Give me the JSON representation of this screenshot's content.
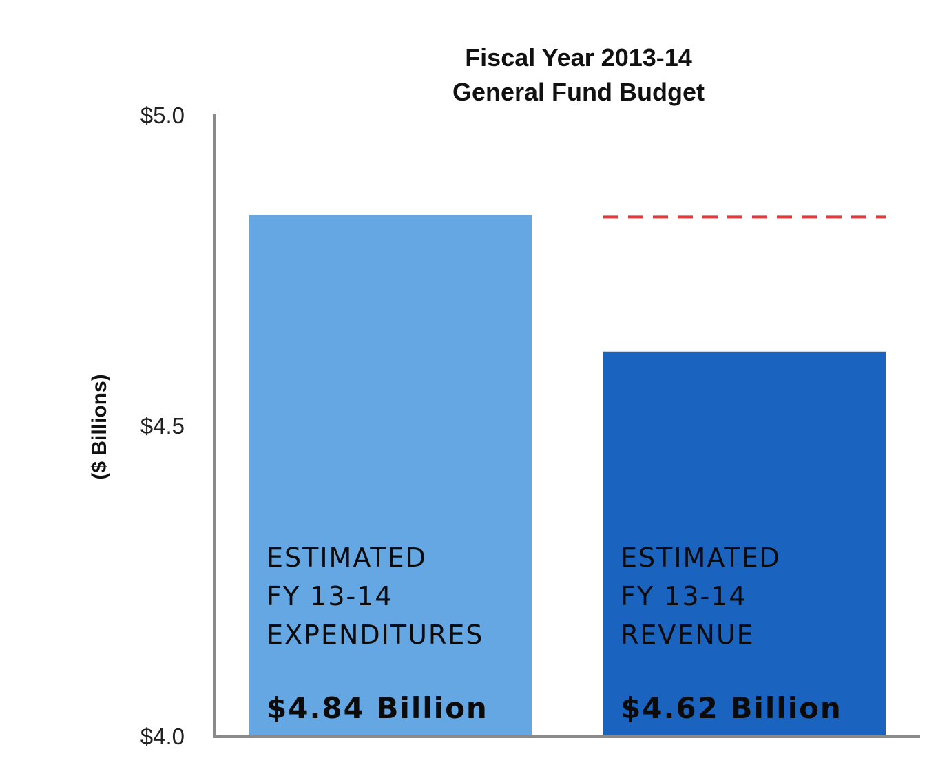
{
  "chart_data": {
    "type": "bar",
    "title": [
      "Fiscal Year 2013-14",
      "General Fund Budget"
    ],
    "xlabel": "",
    "ylabel": "($ Billions)",
    "ylim": [
      4.0,
      5.0
    ],
    "yticks": [
      {
        "value": 4.0,
        "label": "$4.0"
      },
      {
        "value": 4.5,
        "label": "$4.5"
      },
      {
        "value": 5.0,
        "label": "$5.0"
      }
    ],
    "grid": false,
    "legend": "none",
    "categories": [
      [
        "ESTIMATED",
        "FY 13-14",
        "EXPENDITURES"
      ],
      [
        "ESTIMATED",
        "FY 13-14",
        "REVENUE"
      ]
    ],
    "values": [
      4.84,
      4.62
    ],
    "value_labels": [
      "$4.84 Billion",
      "$4.62 Billion"
    ],
    "colors": [
      "#64a7e3",
      "#1a63be"
    ],
    "reference_line": {
      "value": 4.84,
      "over_category": 1,
      "style": "dashed",
      "color": "#e03a3a"
    },
    "axis_color": "#8a8a8a"
  }
}
